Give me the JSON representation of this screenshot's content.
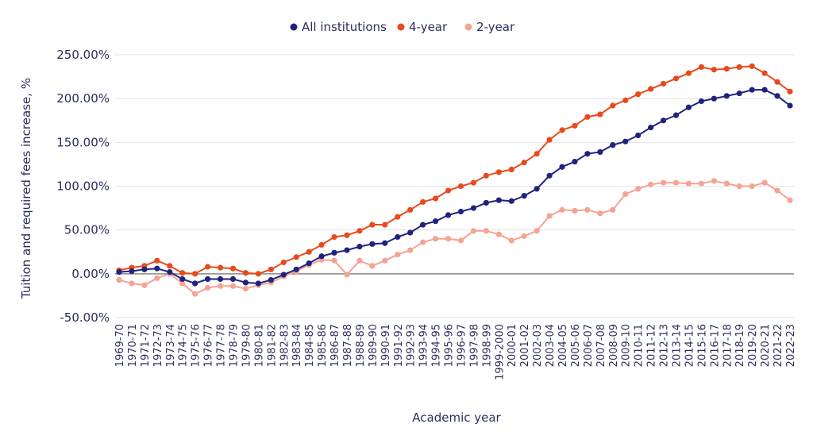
{
  "chart_data": {
    "type": "line",
    "title": "",
    "xlabel": "Academic year",
    "ylabel": "Tuition and required fees increase, %",
    "ylim": [
      -50,
      250
    ],
    "yticks": [
      -50,
      0,
      50,
      100,
      150,
      200,
      250
    ],
    "ytick_labels": [
      "-50.00%",
      "0.00%",
      "50.00%",
      "100.00%",
      "150.00%",
      "200.00%",
      "250.00%"
    ],
    "grid": true,
    "legend_position": "top-center",
    "categories": [
      "1969-70",
      "1970-71",
      "1971-72",
      "1972-73",
      "1973-74",
      "1974-75",
      "1975-76",
      "1976-77",
      "1977-78",
      "1978-79",
      "1979-80",
      "1980-81",
      "1981-82",
      "1982-83",
      "1983-84",
      "1984-85",
      "1985-86",
      "1986-87",
      "1987-88",
      "1988-89",
      "1989-90",
      "1990-91",
      "1991-92",
      "1992-93",
      "1993-94",
      "1994-95",
      "1995-96",
      "1996-97",
      "1997-98",
      "1998-99",
      "1999-2000",
      "2000-01",
      "2001-02",
      "2002-03",
      "2003-04",
      "2004-05",
      "2005-06",
      "2006-07",
      "2007-08",
      "2008-09",
      "2009-10",
      "2010-11",
      "2011-12",
      "2012-13",
      "2013-14",
      "2014-15",
      "2015-16",
      "2016-17",
      "2017-18",
      "2018-19",
      "2019-20",
      "2020-21",
      "2021-22",
      "2022-23"
    ],
    "series": [
      {
        "name": "All institutions",
        "color": "#1f237f",
        "values": [
          2,
          3,
          5,
          6,
          2,
          -6,
          -11,
          -6,
          -6,
          -6,
          -10,
          -11,
          -7,
          -1,
          5,
          12,
          20,
          24,
          27,
          31,
          34,
          35,
          42,
          47,
          56,
          60,
          67,
          71,
          75,
          81,
          84,
          83,
          89,
          97,
          112,
          122,
          128,
          137,
          139,
          147,
          151,
          158,
          167,
          175,
          181,
          190,
          197,
          200,
          203,
          206,
          210,
          210,
          203,
          192
        ]
      },
      {
        "name": "4-year",
        "color": "#e84a1c",
        "values": [
          4,
          7,
          9,
          15,
          9,
          1,
          0,
          8,
          7,
          6,
          1,
          0,
          5,
          13,
          19,
          25,
          33,
          42,
          44,
          49,
          56,
          56,
          65,
          73,
          82,
          86,
          95,
          100,
          104,
          112,
          116,
          119,
          127,
          137,
          153,
          164,
          169,
          179,
          182,
          192,
          198,
          205,
          211,
          217,
          223,
          229,
          236,
          233,
          234,
          236,
          237,
          229,
          219,
          208
        ]
      },
      {
        "name": "2-year",
        "color": "#f4a394",
        "values": [
          -7,
          -11,
          -13,
          -5,
          0,
          -11,
          -23,
          -16,
          -14,
          -14,
          -17,
          -13,
          -10,
          -3,
          3,
          10,
          16,
          15,
          -1,
          15,
          9,
          15,
          22,
          27,
          36,
          40,
          40,
          38,
          49,
          49,
          45,
          38,
          43,
          49,
          66,
          73,
          72,
          73,
          69,
          73,
          91,
          97,
          102,
          104,
          104,
          103,
          103,
          106,
          103,
          100,
          100,
          104,
          95,
          84
        ]
      }
    ]
  }
}
